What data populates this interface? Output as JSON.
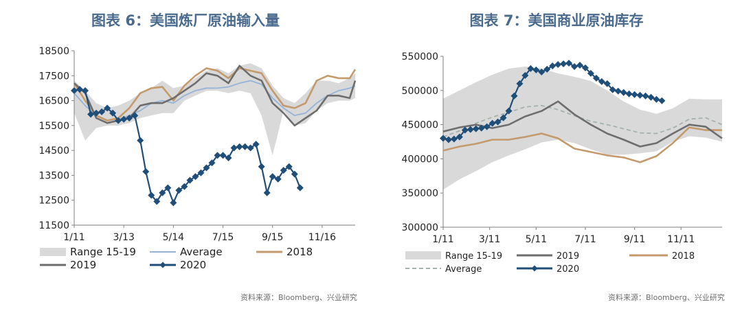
{
  "left": {
    "title": "图表 6：美国炼厂原油输入量",
    "source": "资料来源：Bloomberg、兴业研究"
  },
  "right": {
    "title": "图表 7：美国商业原油库存",
    "source": "资料来源：Bloomberg、兴业研究"
  },
  "colors": {
    "range": "#d9d9d9",
    "average_left": "#95b3d7",
    "average_right": "#a4b3a9",
    "y2018": "#c49a6c",
    "y2019": "#6d6d6d",
    "y2020": "#1f4e79",
    "title": "#4a6b8d"
  },
  "chart_data": [
    {
      "type": "line",
      "title": "",
      "xlabel": "",
      "ylabel": "",
      "x_ticks": [
        "1/11",
        "3/13",
        "5/14",
        "7/15",
        "9/15",
        "11/16"
      ],
      "x_tick_weeks": [
        0,
        9,
        18,
        27,
        36,
        45
      ],
      "x_range": [
        0,
        51
      ],
      "ylim": [
        11500,
        18500
      ],
      "y_ticks": [
        11500,
        12500,
        13500,
        14500,
        15500,
        16500,
        17500,
        18500
      ],
      "legend_order": [
        "Range 15-19",
        "Average",
        "2018",
        "2019",
        "2020"
      ],
      "legend_placement": "bottom",
      "range_band": {
        "name": "Range 15-19",
        "x": [
          0,
          2,
          4,
          6,
          8,
          10,
          12,
          14,
          16,
          18,
          20,
          22,
          24,
          26,
          28,
          30,
          32,
          34,
          36,
          38,
          40,
          42,
          44,
          46,
          48,
          50,
          51
        ],
        "upper": [
          17300,
          16900,
          16400,
          16200,
          16300,
          16500,
          16800,
          17000,
          17300,
          17000,
          17100,
          17400,
          17700,
          17800,
          17600,
          17900,
          18000,
          17800,
          17100,
          16600,
          16400,
          16800,
          17300,
          17300,
          17200,
          17400,
          17600
        ],
        "lower": [
          16000,
          14900,
          15400,
          15500,
          15500,
          15600,
          15800,
          15900,
          16000,
          16000,
          16500,
          16700,
          16900,
          16900,
          16800,
          16900,
          16800,
          15900,
          14300,
          16100,
          15500,
          15600,
          16100,
          16400,
          16500,
          16500,
          16600
        ]
      },
      "series": [
        {
          "name": "Average",
          "x": [
            0,
            2,
            4,
            6,
            8,
            10,
            12,
            14,
            16,
            18,
            20,
            22,
            24,
            26,
            28,
            30,
            32,
            34,
            36,
            38,
            40,
            42,
            44,
            46,
            48,
            50,
            51
          ],
          "values": [
            16800,
            16300,
            15900,
            15700,
            15750,
            15900,
            16100,
            16400,
            16500,
            16400,
            16700,
            16900,
            17000,
            17000,
            17050,
            17200,
            17300,
            17150,
            16600,
            16200,
            15900,
            16000,
            16400,
            16700,
            16900,
            17000,
            17100
          ]
        },
        {
          "name": "2018",
          "x": [
            0,
            2,
            4,
            6,
            8,
            10,
            12,
            14,
            16,
            18,
            20,
            22,
            24,
            26,
            28,
            30,
            32,
            34,
            36,
            38,
            40,
            42,
            44,
            46,
            48,
            50,
            51
          ],
          "values": [
            17200,
            16500,
            15900,
            15700,
            15800,
            16200,
            16800,
            17000,
            17050,
            16500,
            17100,
            17500,
            17800,
            17700,
            17400,
            17800,
            17700,
            17600,
            16900,
            16300,
            16200,
            16400,
            17300,
            17500,
            17400,
            17400,
            17750
          ]
        },
        {
          "name": "2019",
          "x": [
            0,
            2,
            4,
            6,
            8,
            10,
            12,
            14,
            16,
            18,
            20,
            22,
            24,
            26,
            28,
            30,
            32,
            34,
            36,
            38,
            40,
            42,
            44,
            46,
            48,
            50,
            51
          ],
          "values": [
            17200,
            16800,
            15800,
            15600,
            15700,
            15800,
            16300,
            16400,
            16400,
            16600,
            16900,
            17200,
            17600,
            17500,
            17200,
            17900,
            17500,
            17300,
            16400,
            16000,
            15500,
            15800,
            16100,
            16700,
            16700,
            16600,
            17300
          ]
        },
        {
          "name": "2020",
          "x": [
            0,
            1,
            2,
            3,
            4,
            5,
            6,
            7,
            8,
            9,
            10,
            11,
            12,
            13,
            14,
            15,
            16,
            17,
            18,
            19,
            20,
            21,
            22,
            23,
            24,
            25,
            26,
            27,
            28,
            29,
            30,
            31,
            32,
            33,
            34,
            35,
            36,
            37,
            38,
            39,
            40,
            41,
            42,
            43
          ],
          "values": [
            16900,
            16950,
            16900,
            15950,
            16000,
            16050,
            16200,
            16000,
            15700,
            15750,
            15800,
            15900,
            14900,
            13650,
            12700,
            12450,
            12800,
            13000,
            12400,
            12900,
            13050,
            13300,
            13450,
            13600,
            13800,
            14000,
            14300,
            14300,
            14200,
            14600,
            14650,
            14650,
            14600,
            14750,
            13850,
            12800,
            13450,
            13350,
            13700,
            13850,
            13550,
            13000,
            null,
            null
          ]
        }
      ]
    },
    {
      "type": "line",
      "title": "",
      "xlabel": "",
      "ylabel": "",
      "x_ticks": [
        "1/11",
        "3/11",
        "5/11",
        "7/11",
        "9/11",
        "11/11"
      ],
      "x_tick_weeks": [
        0,
        8.5,
        17,
        26,
        35,
        43.5
      ],
      "x_range": [
        0,
        51
      ],
      "ylim": [
        300000,
        550000
      ],
      "y_ticks": [
        300000,
        350000,
        400000,
        450000,
        500000,
        550000
      ],
      "legend_order": [
        "Range 15-19",
        "2019",
        "2018",
        "Average",
        "2020"
      ],
      "legend_placement": "bottom",
      "range_band": {
        "name": "Range 15-19",
        "x": [
          0,
          3,
          6,
          9,
          12,
          15,
          18,
          21,
          24,
          27,
          30,
          33,
          36,
          39,
          42,
          45,
          48,
          51
        ],
        "upper": [
          488000,
          500000,
          512000,
          523000,
          532000,
          535000,
          532000,
          525000,
          520000,
          514000,
          500000,
          484000,
          472000,
          466000,
          474000,
          488000,
          487000,
          487000
        ],
        "lower": [
          355000,
          370000,
          382000,
          395000,
          405000,
          414000,
          424000,
          428000,
          423000,
          414000,
          406000,
          406000,
          408000,
          411000,
          425000,
          433000,
          431000,
          425000
        ]
      },
      "series": [
        {
          "name": "Average",
          "x": [
            0,
            3,
            6,
            9,
            12,
            15,
            18,
            21,
            24,
            27,
            30,
            33,
            36,
            39,
            42,
            45,
            48,
            51
          ],
          "values": [
            432000,
            441000,
            452000,
            461000,
            468000,
            476000,
            478000,
            472000,
            463000,
            455000,
            450000,
            444000,
            438000,
            437000,
            445000,
            458000,
            460000,
            450000
          ]
        },
        {
          "name": "2018",
          "x": [
            0,
            3,
            6,
            9,
            12,
            15,
            18,
            21,
            24,
            27,
            30,
            33,
            36,
            39,
            42,
            45,
            48,
            51
          ],
          "values": [
            412000,
            418000,
            422000,
            428000,
            428000,
            432000,
            437000,
            430000,
            415000,
            410000,
            405000,
            402000,
            395000,
            404000,
            423000,
            446000,
            442000,
            442000
          ]
        },
        {
          "name": "2019",
          "x": [
            0,
            3,
            6,
            9,
            12,
            15,
            18,
            21,
            24,
            27,
            30,
            33,
            36,
            39,
            42,
            45,
            48,
            51
          ],
          "values": [
            440000,
            446000,
            450000,
            445000,
            450000,
            462000,
            470000,
            484000,
            465000,
            450000,
            437000,
            428000,
            418000,
            423000,
            437000,
            450000,
            447000,
            430000
          ]
        },
        {
          "name": "2020",
          "x": [
            0,
            1,
            2,
            3,
            4,
            5,
            6,
            7,
            8,
            9,
            10,
            11,
            12,
            13,
            14,
            15,
            16,
            17,
            18,
            19,
            20,
            21,
            22,
            23,
            24,
            25,
            26,
            27,
            28,
            29,
            30,
            31,
            32,
            33,
            34,
            35,
            36,
            37,
            38,
            39,
            40
          ],
          "values": [
            430000,
            428000,
            429000,
            432000,
            442000,
            443000,
            444000,
            445000,
            447000,
            452000,
            454000,
            460000,
            470000,
            492000,
            510000,
            522000,
            532000,
            530000,
            527000,
            531000,
            536000,
            538000,
            539000,
            540000,
            535000,
            537000,
            533000,
            525000,
            518000,
            513000,
            510000,
            501000,
            499000,
            497000,
            495000,
            494000,
            493000,
            492000,
            490000,
            487000,
            485000
          ]
        }
      ]
    }
  ]
}
